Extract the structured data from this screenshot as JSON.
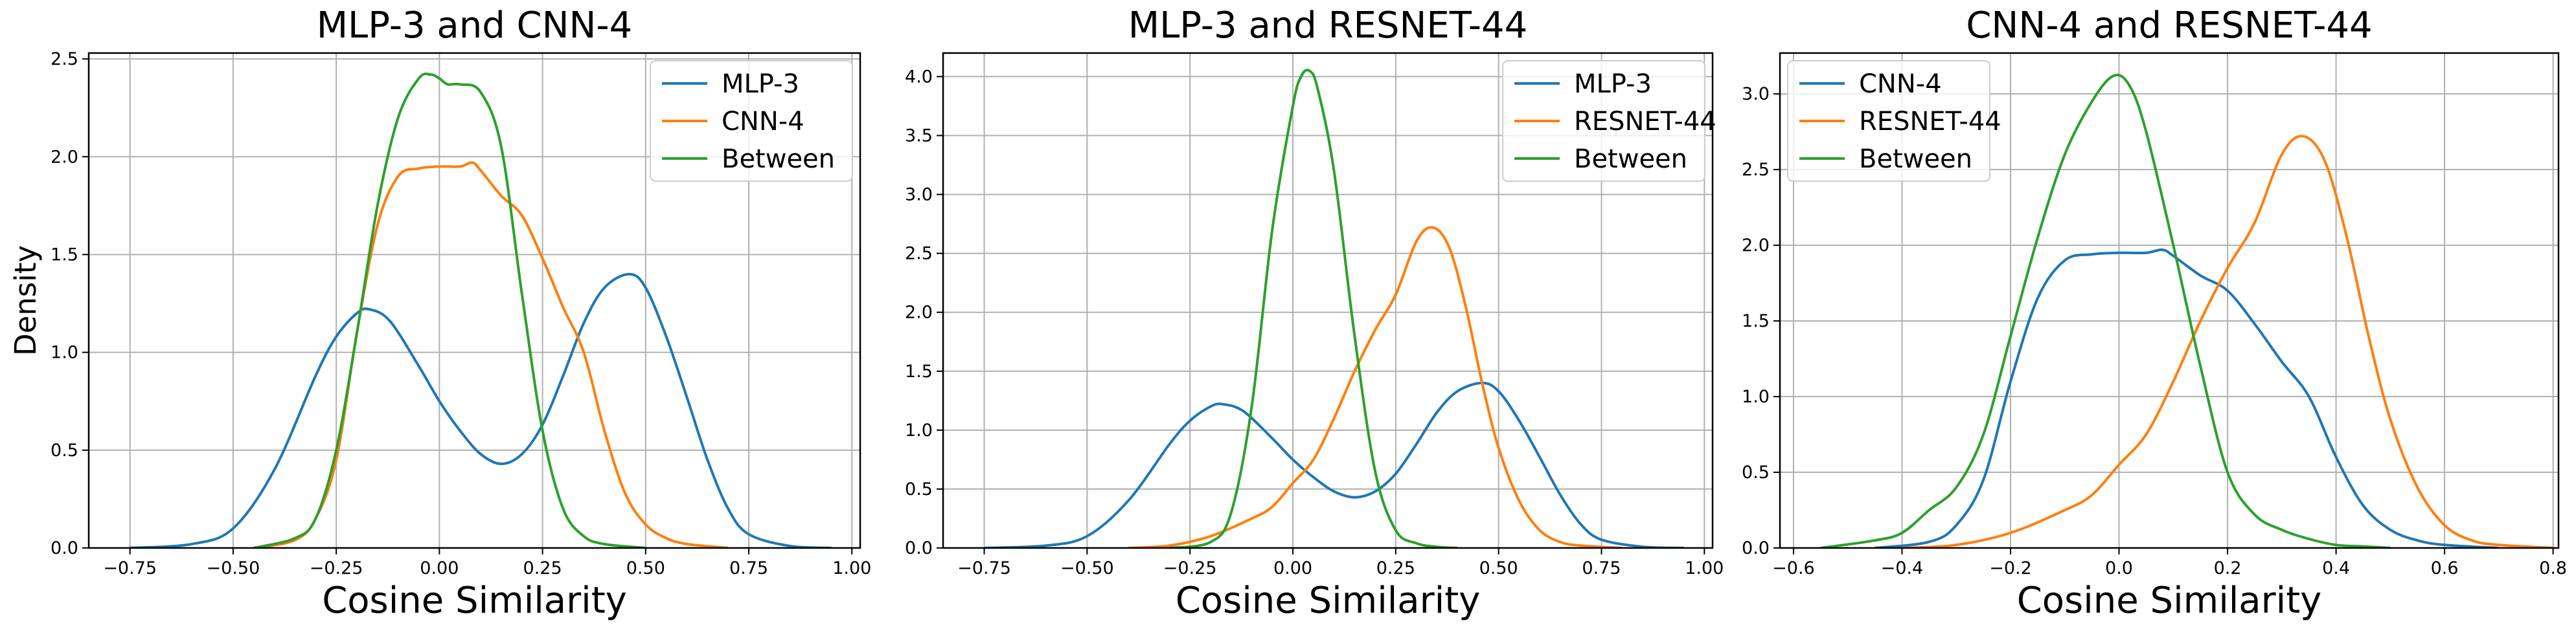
{
  "chart_data": [
    {
      "type": "line",
      "title": "MLP-3 and CNN-4",
      "xlabel": "Cosine Similarity",
      "ylabel": "Density",
      "xlim": [
        -0.85,
        1.02
      ],
      "ylim": [
        0,
        2.53
      ],
      "xticks": [
        -0.75,
        -0.5,
        -0.25,
        0.0,
        0.25,
        0.5,
        0.75,
        1.0
      ],
      "xtick_labels": [
        "−0.75",
        "−0.50",
        "−0.25",
        "0.00",
        "0.25",
        "0.50",
        "0.75",
        "1.00"
      ],
      "yticks": [
        0,
        0.5,
        1.0,
        1.5,
        2.0,
        2.5
      ],
      "ytick_labels": [
        "0.0",
        "0.5",
        "1.0",
        "1.5",
        "2.0",
        "2.5"
      ],
      "grid": true,
      "legend": "top-right",
      "series": [
        {
          "name": "MLP-3",
          "color": "#1f77b4",
          "x": [
            -0.75,
            -0.6,
            -0.5,
            -0.4,
            -0.3,
            -0.25,
            -0.2,
            -0.17,
            -0.12,
            -0.05,
            0.0,
            0.05,
            0.1,
            0.15,
            0.2,
            0.25,
            0.3,
            0.35,
            0.4,
            0.46,
            0.5,
            0.55,
            0.6,
            0.65,
            0.7,
            0.75,
            0.85,
            0.95
          ],
          "y": [
            0.0,
            0.02,
            0.1,
            0.4,
            0.88,
            1.08,
            1.2,
            1.22,
            1.16,
            0.93,
            0.75,
            0.6,
            0.48,
            0.43,
            0.48,
            0.63,
            0.88,
            1.15,
            1.33,
            1.4,
            1.33,
            1.08,
            0.77,
            0.45,
            0.2,
            0.07,
            0.01,
            0.0
          ]
        },
        {
          "name": "CNN-4",
          "color": "#ff7f0e",
          "x": [
            -0.45,
            -0.35,
            -0.3,
            -0.25,
            -0.2,
            -0.15,
            -0.1,
            -0.05,
            0.0,
            0.05,
            0.08,
            0.1,
            0.15,
            0.2,
            0.25,
            0.3,
            0.35,
            0.4,
            0.45,
            0.5,
            0.55,
            0.6,
            0.7
          ],
          "y": [
            0.0,
            0.04,
            0.15,
            0.45,
            1.1,
            1.65,
            1.9,
            1.94,
            1.95,
            1.95,
            1.97,
            1.93,
            1.8,
            1.7,
            1.48,
            1.23,
            1.0,
            0.6,
            0.28,
            0.12,
            0.05,
            0.02,
            0.0
          ]
        },
        {
          "name": "Between",
          "color": "#2ca02c",
          "x": [
            -0.45,
            -0.35,
            -0.3,
            -0.25,
            -0.2,
            -0.15,
            -0.1,
            -0.05,
            -0.02,
            0.0,
            0.02,
            0.05,
            0.1,
            0.15,
            0.2,
            0.25,
            0.3,
            0.35,
            0.4,
            0.5
          ],
          "y": [
            0.0,
            0.05,
            0.15,
            0.5,
            1.1,
            1.75,
            2.2,
            2.4,
            2.42,
            2.4,
            2.37,
            2.37,
            2.33,
            2.05,
            1.3,
            0.6,
            0.2,
            0.06,
            0.02,
            0.0
          ]
        }
      ]
    },
    {
      "type": "line",
      "title": "MLP-3 and RESNET-44",
      "xlabel": "Cosine Similarity",
      "ylabel": "",
      "xlim": [
        -0.85,
        1.02
      ],
      "ylim": [
        0,
        4.2
      ],
      "xticks": [
        -0.75,
        -0.5,
        -0.25,
        0.0,
        0.25,
        0.5,
        0.75,
        1.0
      ],
      "xtick_labels": [
        "−0.75",
        "−0.50",
        "−0.25",
        "0.00",
        "0.25",
        "0.50",
        "0.75",
        "1.00"
      ],
      "yticks": [
        0,
        0.5,
        1.0,
        1.5,
        2.0,
        2.5,
        3.0,
        3.5,
        4.0
      ],
      "ytick_labels": [
        "0.0",
        "0.5",
        "1.0",
        "1.5",
        "2.0",
        "2.5",
        "3.0",
        "3.5",
        "4.0"
      ],
      "grid": true,
      "legend": "top-right",
      "series": [
        {
          "name": "MLP-3",
          "color": "#1f77b4",
          "x": [
            -0.75,
            -0.6,
            -0.5,
            -0.4,
            -0.3,
            -0.25,
            -0.2,
            -0.17,
            -0.12,
            -0.05,
            0.0,
            0.05,
            0.1,
            0.15,
            0.2,
            0.25,
            0.3,
            0.35,
            0.4,
            0.46,
            0.5,
            0.55,
            0.6,
            0.65,
            0.7,
            0.75,
            0.85,
            0.95
          ],
          "y": [
            0.0,
            0.02,
            0.1,
            0.4,
            0.88,
            1.08,
            1.2,
            1.22,
            1.16,
            0.93,
            0.75,
            0.6,
            0.48,
            0.43,
            0.48,
            0.63,
            0.88,
            1.15,
            1.33,
            1.4,
            1.33,
            1.08,
            0.77,
            0.45,
            0.2,
            0.07,
            0.01,
            0.0
          ]
        },
        {
          "name": "RESNET-44",
          "color": "#ff7f0e",
          "x": [
            -0.4,
            -0.3,
            -0.2,
            -0.1,
            -0.05,
            0.0,
            0.05,
            0.1,
            0.15,
            0.2,
            0.25,
            0.3,
            0.34,
            0.38,
            0.42,
            0.46,
            0.5,
            0.55,
            0.6,
            0.65,
            0.7,
            0.8
          ],
          "y": [
            0.0,
            0.02,
            0.1,
            0.25,
            0.35,
            0.55,
            0.75,
            1.1,
            1.5,
            1.85,
            2.15,
            2.6,
            2.72,
            2.55,
            2.05,
            1.4,
            0.85,
            0.4,
            0.15,
            0.05,
            0.02,
            0.0
          ]
        },
        {
          "name": "Between",
          "color": "#2ca02c",
          "x": [
            -0.3,
            -0.2,
            -0.15,
            -0.1,
            -0.05,
            0.0,
            0.02,
            0.04,
            0.06,
            0.1,
            0.15,
            0.2,
            0.25,
            0.3,
            0.35,
            0.4
          ],
          "y": [
            0.0,
            0.05,
            0.3,
            1.2,
            2.7,
            3.75,
            4.0,
            4.05,
            3.9,
            3.2,
            1.8,
            0.65,
            0.15,
            0.04,
            0.01,
            0.0
          ]
        }
      ]
    },
    {
      "type": "line",
      "title": "CNN-4 and RESNET-44",
      "xlabel": "Cosine Similarity",
      "ylabel": "",
      "xlim": [
        -0.625,
        0.81
      ],
      "ylim": [
        0,
        3.27
      ],
      "xticks": [
        -0.6,
        -0.4,
        -0.2,
        0.0,
        0.2,
        0.4,
        0.6,
        0.8
      ],
      "xtick_labels": [
        "−0.6",
        "−0.4",
        "−0.2",
        "0.0",
        "0.2",
        "0.4",
        "0.6",
        "0.8"
      ],
      "yticks": [
        0,
        0.5,
        1.0,
        1.5,
        2.0,
        2.5,
        3.0
      ],
      "ytick_labels": [
        "0.0",
        "0.5",
        "1.0",
        "1.5",
        "2.0",
        "2.5",
        "3.0"
      ],
      "grid": true,
      "legend": "top-left",
      "series": [
        {
          "name": "CNN-4",
          "color": "#1f77b4",
          "x": [
            -0.45,
            -0.35,
            -0.3,
            -0.25,
            -0.2,
            -0.15,
            -0.1,
            -0.05,
            0.0,
            0.05,
            0.08,
            0.1,
            0.15,
            0.2,
            0.25,
            0.3,
            0.35,
            0.4,
            0.45,
            0.5,
            0.55,
            0.6,
            0.7
          ],
          "y": [
            0.0,
            0.04,
            0.15,
            0.45,
            1.1,
            1.65,
            1.9,
            1.94,
            1.95,
            1.95,
            1.97,
            1.93,
            1.8,
            1.7,
            1.48,
            1.23,
            1.0,
            0.6,
            0.28,
            0.12,
            0.05,
            0.02,
            0.0
          ]
        },
        {
          "name": "RESNET-44",
          "color": "#ff7f0e",
          "x": [
            -0.4,
            -0.3,
            -0.2,
            -0.1,
            -0.05,
            0.0,
            0.05,
            0.1,
            0.15,
            0.2,
            0.25,
            0.3,
            0.34,
            0.38,
            0.42,
            0.46,
            0.5,
            0.55,
            0.6,
            0.65,
            0.7,
            0.8
          ],
          "y": [
            0.0,
            0.02,
            0.1,
            0.25,
            0.35,
            0.55,
            0.75,
            1.1,
            1.5,
            1.85,
            2.15,
            2.6,
            2.72,
            2.55,
            2.05,
            1.4,
            0.85,
            0.4,
            0.15,
            0.05,
            0.02,
            0.0
          ]
        },
        {
          "name": "Between",
          "color": "#2ca02c",
          "x": [
            -0.55,
            -0.45,
            -0.4,
            -0.35,
            -0.3,
            -0.25,
            -0.2,
            -0.15,
            -0.1,
            -0.05,
            -0.01,
            0.02,
            0.05,
            0.1,
            0.15,
            0.2,
            0.25,
            0.3,
            0.35,
            0.4,
            0.45,
            0.5
          ],
          "y": [
            0.0,
            0.05,
            0.1,
            0.25,
            0.4,
            0.75,
            1.4,
            2.05,
            2.6,
            2.95,
            3.12,
            3.05,
            2.75,
            2.0,
            1.2,
            0.5,
            0.22,
            0.12,
            0.06,
            0.02,
            0.01,
            0.0
          ]
        }
      ]
    }
  ]
}
